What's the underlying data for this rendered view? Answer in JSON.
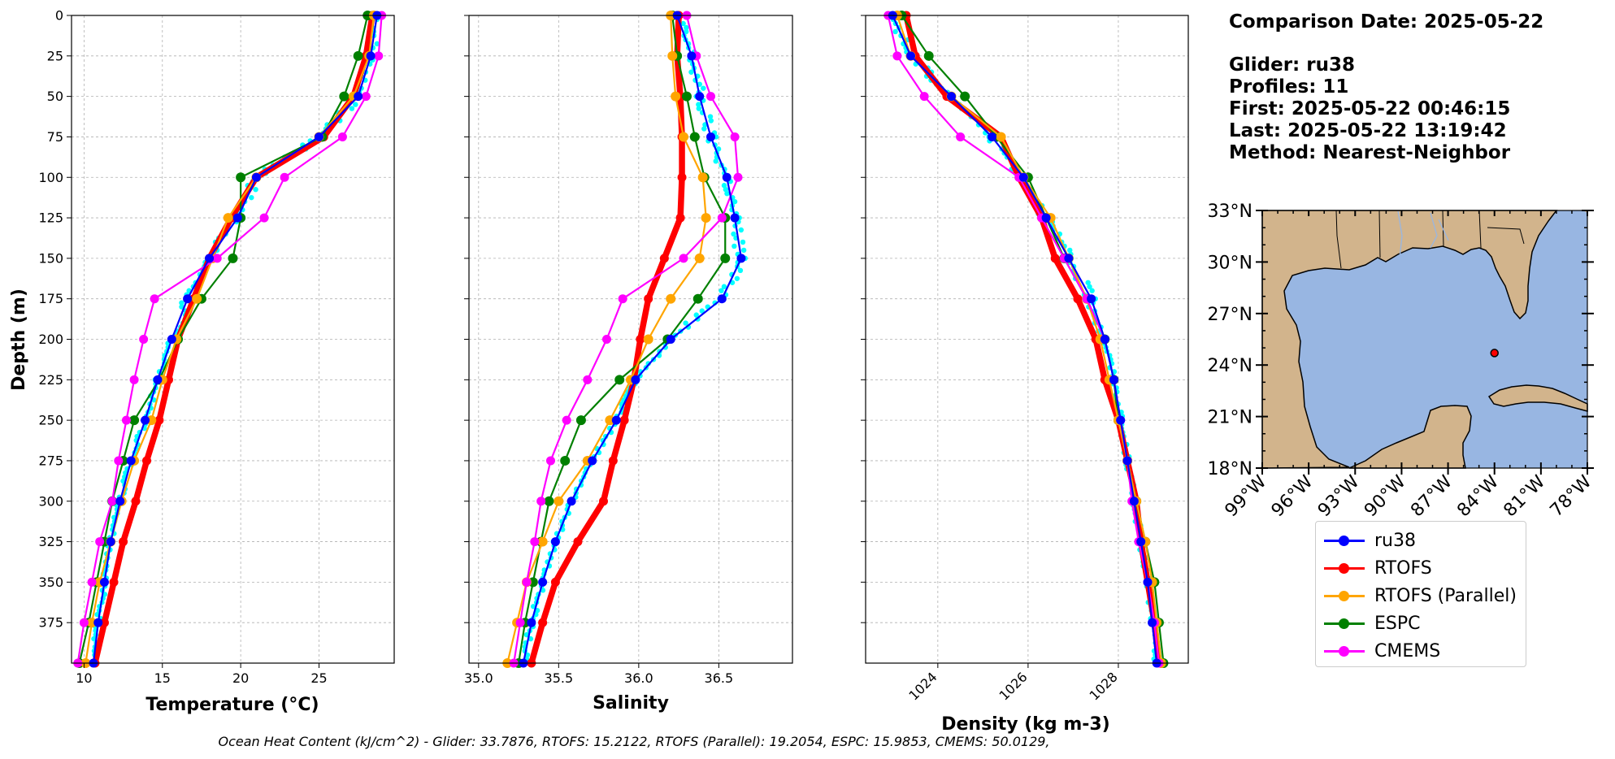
{
  "colors": {
    "ru38": "#0000ff",
    "RTOFS": "#ff0000",
    "RTOFS (Parallel)": "#ffa500",
    "ESPC": "#008000",
    "CMEMS": "#ff00ff",
    "glider_scatter": "#00ffff",
    "land": "#d2b48c",
    "ocean": "#98b6e2"
  },
  "info": {
    "date_line": "Comparison Date: 2025-05-22",
    "glider_line": "Glider: ru38",
    "profiles_line": "Profiles: 11",
    "first_line": "First: 2025-05-22 00:46:15",
    "last_line": "Last: 2025-05-22 13:19:42",
    "method_line": "Method: Nearest-Neighbor"
  },
  "legend": [
    {
      "key": "ru38",
      "label": "ru38"
    },
    {
      "key": "RTOFS",
      "label": "RTOFS"
    },
    {
      "key": "RTOFS (Parallel)",
      "label": "RTOFS (Parallel)"
    },
    {
      "key": "ESPC",
      "label": "ESPC"
    },
    {
      "key": "CMEMS",
      "label": "CMEMS"
    }
  ],
  "footer": "Ocean Heat Content (kJ/cm^2) - Glider: 33.7876,  RTOFS: 15.2122,  RTOFS (Parallel): 19.2054,  ESPC: 15.9853,  CMEMS: 50.0129,",
  "chart_data": [
    {
      "type": "line",
      "xlabel": "Temperature (°C)",
      "ylabel": "Depth (m)",
      "xlim": [
        9.2,
        29.8
      ],
      "ylim": [
        400,
        0
      ],
      "xticks": [
        10,
        15,
        20,
        25
      ],
      "yticks": [
        0,
        25,
        50,
        75,
        100,
        125,
        150,
        175,
        200,
        225,
        250,
        275,
        300,
        325,
        350,
        375
      ],
      "grid": true,
      "depth": [
        0,
        25,
        50,
        75,
        100,
        125,
        150,
        175,
        200,
        225,
        250,
        275,
        300,
        325,
        350,
        375,
        400
      ],
      "series": [
        {
          "name": "RTOFS",
          "values": [
            28.4,
            28.0,
            27.2,
            25.3,
            21.0,
            19.4,
            18.0,
            17.0,
            16.0,
            15.4,
            14.8,
            14.0,
            13.3,
            12.5,
            11.9,
            11.3,
            10.7
          ]
        },
        {
          "name": "ESPC",
          "values": [
            28.1,
            27.5,
            26.6,
            25.2,
            20.0,
            20.0,
            19.5,
            17.5,
            16.0,
            14.8,
            13.2,
            12.5,
            11.8,
            11.3,
            10.8,
            10.3,
            9.7
          ]
        },
        {
          "name": "RTOFS (Parallel)",
          "values": [
            28.5,
            28.2,
            27.2,
            25.0,
            21.0,
            19.2,
            18.2,
            17.2,
            15.9,
            15.0,
            14.3,
            13.2,
            12.4,
            11.7,
            11.0,
            10.5,
            10.1
          ]
        },
        {
          "name": "CMEMS",
          "values": [
            29.0,
            28.8,
            28.0,
            26.5,
            22.8,
            21.5,
            18.5,
            14.5,
            13.8,
            13.2,
            12.7,
            12.2,
            11.8,
            11.0,
            10.5,
            10.0,
            9.6
          ]
        },
        {
          "name": "ru38",
          "values": [
            28.7,
            28.3,
            27.5,
            25.0,
            21.0,
            19.8,
            18.0,
            16.6,
            15.6,
            14.7,
            13.9,
            13.0,
            12.3,
            11.7,
            11.3,
            10.9,
            10.6
          ]
        }
      ]
    },
    {
      "type": "line",
      "xlabel": "Salinity",
      "xlim": [
        34.94,
        36.96
      ],
      "ylim": [
        400,
        0
      ],
      "xticks": [
        35.0,
        35.5,
        36.0,
        36.5
      ],
      "grid": true,
      "depth": [
        0,
        25,
        50,
        75,
        100,
        125,
        150,
        175,
        200,
        225,
        250,
        275,
        300,
        325,
        350,
        375,
        400
      ],
      "series": [
        {
          "name": "RTOFS",
          "values": [
            36.25,
            36.24,
            36.26,
            36.27,
            36.27,
            36.26,
            36.16,
            36.06,
            36.01,
            35.97,
            35.91,
            35.84,
            35.78,
            35.62,
            35.48,
            35.4,
            35.33
          ]
        },
        {
          "name": "ESPC",
          "values": [
            36.21,
            36.24,
            36.3,
            36.35,
            36.41,
            36.54,
            36.54,
            36.37,
            36.18,
            35.88,
            35.64,
            35.54,
            35.44,
            35.39,
            35.34,
            35.29,
            35.25
          ]
        },
        {
          "name": "RTOFS (Parallel)",
          "values": [
            36.2,
            36.21,
            36.23,
            36.28,
            36.4,
            36.42,
            36.38,
            36.2,
            36.06,
            35.95,
            35.82,
            35.68,
            35.5,
            35.4,
            35.3,
            35.24,
            35.18
          ]
        },
        {
          "name": "CMEMS",
          "values": [
            36.3,
            36.36,
            36.45,
            36.6,
            36.62,
            36.52,
            36.28,
            35.9,
            35.8,
            35.68,
            35.55,
            35.45,
            35.39,
            35.35,
            35.3,
            35.26,
            35.22
          ]
        },
        {
          "name": "ru38",
          "values": [
            36.24,
            36.33,
            36.38,
            36.45,
            36.55,
            36.6,
            36.64,
            36.52,
            36.2,
            35.98,
            35.86,
            35.71,
            35.58,
            35.48,
            35.4,
            35.33,
            35.28
          ]
        }
      ]
    },
    {
      "type": "line",
      "xlabel": "Density (kg m-3)",
      "xlim": [
        1022.4,
        1029.55
      ],
      "ylim": [
        400,
        0
      ],
      "xticks": [
        1024,
        1026,
        1028
      ],
      "grid": true,
      "depth": [
        0,
        25,
        50,
        75,
        100,
        125,
        150,
        175,
        200,
        225,
        250,
        275,
        300,
        325,
        350,
        375,
        400
      ],
      "series": [
        {
          "name": "RTOFS",
          "values": [
            1023.3,
            1023.5,
            1024.2,
            1025.4,
            1025.8,
            1026.3,
            1026.6,
            1027.1,
            1027.5,
            1027.7,
            1028.0,
            1028.2,
            1028.4,
            1028.5,
            1028.65,
            1028.8,
            1028.9
          ]
        },
        {
          "name": "ESPC",
          "values": [
            1023.2,
            1023.8,
            1024.6,
            1025.3,
            1026.0,
            1026.4,
            1026.8,
            1027.3,
            1027.7,
            1027.9,
            1028.0,
            1028.2,
            1028.4,
            1028.6,
            1028.8,
            1028.9,
            1029.0
          ]
        },
        {
          "name": "RTOFS (Parallel)",
          "values": [
            1023.1,
            1023.4,
            1024.3,
            1025.4,
            1025.9,
            1026.5,
            1026.9,
            1027.3,
            1027.6,
            1027.8,
            1028.0,
            1028.2,
            1028.4,
            1028.6,
            1028.75,
            1028.85,
            1028.95
          ]
        },
        {
          "name": "CMEMS",
          "values": [
            1022.9,
            1023.1,
            1023.7,
            1024.5,
            1025.8,
            1026.3,
            1026.8,
            1027.3,
            1027.7,
            1027.9,
            1028.05,
            1028.2,
            1028.3,
            1028.45,
            1028.65,
            1028.8,
            1028.9
          ]
        },
        {
          "name": "ru38",
          "values": [
            1023.0,
            1023.4,
            1024.3,
            1025.2,
            1025.9,
            1026.4,
            1026.9,
            1027.4,
            1027.7,
            1027.9,
            1028.05,
            1028.2,
            1028.35,
            1028.5,
            1028.65,
            1028.75,
            1028.85
          ]
        }
      ]
    }
  ],
  "map": {
    "lat_ticks": [
      "33°N",
      "30°N",
      "27°N",
      "24°N",
      "21°N",
      "18°N"
    ],
    "lon_ticks": [
      "99°W",
      "96°W",
      "93°W",
      "90°W",
      "87°W",
      "84°W",
      "81°W",
      "78°W"
    ],
    "lat_range": [
      18,
      33
    ],
    "lon_range": [
      -99,
      -78
    ],
    "glider_position": {
      "lon": -84.0,
      "lat": 24.7
    }
  }
}
